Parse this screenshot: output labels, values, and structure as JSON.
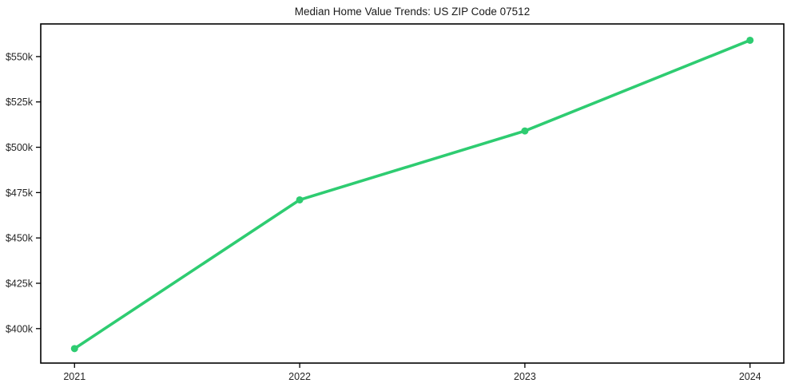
{
  "chart_data": {
    "type": "line",
    "title": "Median Home Value Trends: US ZIP Code 07512",
    "x": [
      2021,
      2022,
      2023,
      2024
    ],
    "x_tick_labels": [
      "2021",
      "2022",
      "2023",
      "2024"
    ],
    "series": [
      {
        "name": "Median Home Value",
        "values": [
          389000,
          471000,
          509000,
          559000
        ]
      }
    ],
    "y_ticks": [
      {
        "value": 400000,
        "label": "$400k"
      },
      {
        "value": 425000,
        "label": "$425k"
      },
      {
        "value": 450000,
        "label": "$450k"
      },
      {
        "value": 475000,
        "label": "$475k"
      },
      {
        "value": 500000,
        "label": "$500k"
      },
      {
        "value": 525000,
        "label": "$525k"
      },
      {
        "value": 550000,
        "label": "$550k"
      }
    ],
    "xlim": [
      2020.85,
      2024.15
    ],
    "ylim": [
      381000,
      568000
    ],
    "grid": false,
    "legend": "none",
    "line_color": "#2ecc71",
    "marker": "circle",
    "axis_color": "#000000",
    "tick_text_color": "#262626",
    "background_color": "#ffffff"
  }
}
